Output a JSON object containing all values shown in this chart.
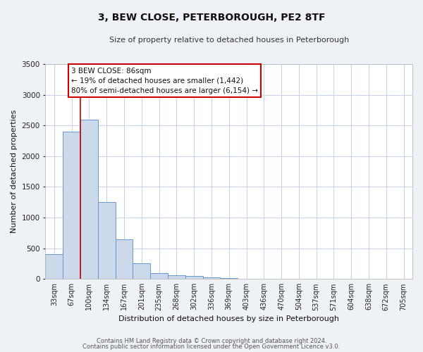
{
  "title": "3, BEW CLOSE, PETERBOROUGH, PE2 8TF",
  "subtitle": "Size of property relative to detached houses in Peterborough",
  "xlabel": "Distribution of detached houses by size in Peterborough",
  "ylabel": "Number of detached properties",
  "bar_labels": [
    "33sqm",
    "67sqm",
    "100sqm",
    "134sqm",
    "167sqm",
    "201sqm",
    "235sqm",
    "268sqm",
    "302sqm",
    "336sqm",
    "369sqm",
    "403sqm",
    "436sqm",
    "470sqm",
    "504sqm",
    "537sqm",
    "571sqm",
    "604sqm",
    "638sqm",
    "672sqm",
    "705sqm"
  ],
  "bar_values": [
    400,
    2400,
    2600,
    1250,
    650,
    260,
    100,
    60,
    45,
    30,
    20,
    0,
    0,
    0,
    0,
    0,
    0,
    0,
    0,
    0,
    0
  ],
  "bar_color": "#ccd9ea",
  "bar_edge_color": "#6699cc",
  "ylim": [
    0,
    3500
  ],
  "yticks": [
    0,
    500,
    1000,
    1500,
    2000,
    2500,
    3000,
    3500
  ],
  "red_line_x": 1.5,
  "annotation_title": "3 BEW CLOSE: 86sqm",
  "annotation_line1": "← 19% of detached houses are smaller (1,442)",
  "annotation_line2": "80% of semi-detached houses are larger (6,154) →",
  "footer_line1": "Contains HM Land Registry data © Crown copyright and database right 2024.",
  "footer_line2": "Contains public sector information licensed under the Open Government Licence v3.0.",
  "bg_color": "#eef2f7",
  "plot_bg_color": "#ffffff",
  "grid_color": "#c5d3e8"
}
